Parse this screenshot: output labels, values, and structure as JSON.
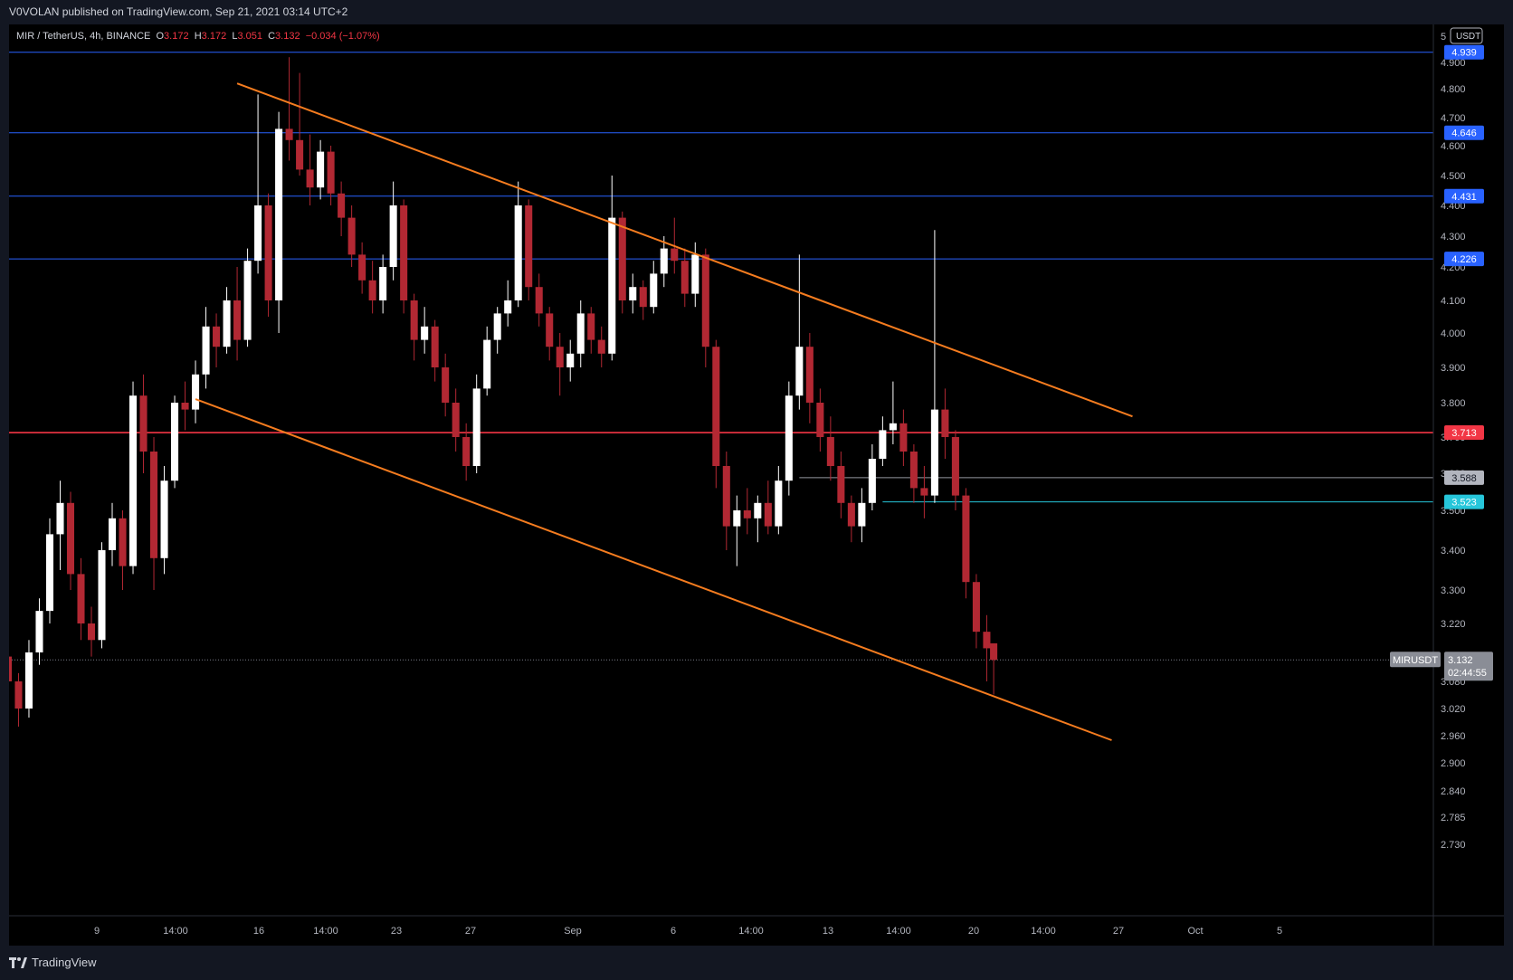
{
  "header": {
    "published": "V0VOLAN published on TradingView.com, Sep 21, 2021 03:14 UTC+2"
  },
  "legend": {
    "symbol": "MIR / TetherUS, 4h, BINANCE",
    "o_label": "O",
    "o_value": "3.172",
    "h_label": "H",
    "h_value": "3.172",
    "l_label": "L",
    "l_value": "3.051",
    "c_label": "C",
    "c_value": "3.132",
    "change": "−0.034 (−1.07%)"
  },
  "footer": {
    "brand": "TradingView"
  },
  "colors": {
    "background": "#000000",
    "up_candle": "#ffffff",
    "down_candle": "#b22833",
    "trendline": "#f57c1f",
    "level_blue": "#2962ff",
    "level_red": "#f23645",
    "level_teal": "#26c6da",
    "level_gray": "#9598a1"
  },
  "chart_data": {
    "type": "candlestick",
    "symbol": "MIRUSDT",
    "quote_currency": "USDT",
    "timeframe": "4h",
    "exchange": "BINANCE",
    "y_axis": {
      "unit": "USDT",
      "ticks": [
        "5",
        "4.900",
        "4.800",
        "4.700",
        "4.600",
        "4.500",
        "4.400",
        "4.300",
        "4.200",
        "4.100",
        "4.000",
        "3.900",
        "3.800",
        "3.700",
        "3.600",
        "3.500",
        "3.400",
        "3.300",
        "3.220",
        "3.080",
        "3.020",
        "2.960",
        "2.900",
        "2.840",
        "2.785",
        "2.730"
      ],
      "top_label": "5"
    },
    "x_axis": {
      "ticks": [
        "9",
        "14:00",
        "16",
        "14:00",
        "23",
        "27",
        "Sep",
        "6",
        "14:00",
        "13",
        "14:00",
        "20",
        "14:00",
        "27",
        "Oct",
        "5"
      ]
    },
    "time_range": [
      "2021-08-05",
      "2021-10-08"
    ],
    "horizontal_levels": [
      {
        "price": 4.939,
        "label": "4.939",
        "color": "blue"
      },
      {
        "price": 4.646,
        "label": "4.646",
        "color": "blue"
      },
      {
        "price": 4.431,
        "label": "4.431",
        "color": "blue"
      },
      {
        "price": 4.226,
        "label": "4.226",
        "color": "blue"
      },
      {
        "price": 3.713,
        "label": "3.713",
        "color": "red"
      },
      {
        "price": 3.588,
        "label": "3.588",
        "color": "gray"
      },
      {
        "price": 3.523,
        "label": "3.523",
        "color": "teal"
      }
    ],
    "current_price": {
      "symbol_label": "MIRUSDT",
      "price": "3.132",
      "countdown": "02:44:55"
    },
    "trendlines": [
      {
        "start": [
          "2021-08-16",
          4.82
        ],
        "end": [
          "2021-09-28",
          3.76
        ]
      },
      {
        "start": [
          "2021-08-14",
          3.81
        ],
        "end": [
          "2021-09-27",
          2.95
        ]
      }
    ],
    "candles": [
      {
        "t": "2021-08-05T00:00",
        "o": 3.14,
        "h": 3.16,
        "l": 3.05,
        "c": 3.08
      },
      {
        "t": "2021-08-05T12:00",
        "o": 3.08,
        "h": 3.1,
        "l": 2.98,
        "c": 3.02
      },
      {
        "t": "2021-08-06T00:00",
        "o": 3.02,
        "h": 3.18,
        "l": 3.0,
        "c": 3.15
      },
      {
        "t": "2021-08-06T12:00",
        "o": 3.15,
        "h": 3.28,
        "l": 3.12,
        "c": 3.25
      },
      {
        "t": "2021-08-07T00:00",
        "o": 3.25,
        "h": 3.48,
        "l": 3.22,
        "c": 3.44
      },
      {
        "t": "2021-08-07T12:00",
        "o": 3.44,
        "h": 3.58,
        "l": 3.35,
        "c": 3.52
      },
      {
        "t": "2021-08-08T00:00",
        "o": 3.52,
        "h": 3.55,
        "l": 3.3,
        "c": 3.34
      },
      {
        "t": "2021-08-08T12:00",
        "o": 3.34,
        "h": 3.38,
        "l": 3.18,
        "c": 3.22
      },
      {
        "t": "2021-08-09T00:00",
        "o": 3.22,
        "h": 3.26,
        "l": 3.14,
        "c": 3.18
      },
      {
        "t": "2021-08-09T12:00",
        "o": 3.18,
        "h": 3.42,
        "l": 3.16,
        "c": 3.4
      },
      {
        "t": "2021-08-10T00:00",
        "o": 3.4,
        "h": 3.52,
        "l": 3.36,
        "c": 3.48
      },
      {
        "t": "2021-08-10T12:00",
        "o": 3.48,
        "h": 3.5,
        "l": 3.3,
        "c": 3.36
      },
      {
        "t": "2021-08-11T00:00",
        "o": 3.36,
        "h": 3.86,
        "l": 3.34,
        "c": 3.82
      },
      {
        "t": "2021-08-11T12:00",
        "o": 3.82,
        "h": 3.88,
        "l": 3.6,
        "c": 3.66
      },
      {
        "t": "2021-08-12T00:00",
        "o": 3.66,
        "h": 3.7,
        "l": 3.3,
        "c": 3.38
      },
      {
        "t": "2021-08-12T12:00",
        "o": 3.38,
        "h": 3.62,
        "l": 3.34,
        "c": 3.58
      },
      {
        "t": "2021-08-13T00:00",
        "o": 3.58,
        "h": 3.82,
        "l": 3.56,
        "c": 3.8
      },
      {
        "t": "2021-08-13T12:00",
        "o": 3.8,
        "h": 3.86,
        "l": 3.72,
        "c": 3.78
      },
      {
        "t": "2021-08-14T00:00",
        "o": 3.78,
        "h": 3.92,
        "l": 3.74,
        "c": 3.88
      },
      {
        "t": "2021-08-14T12:00",
        "o": 3.88,
        "h": 4.08,
        "l": 3.84,
        "c": 4.02
      },
      {
        "t": "2021-08-15T00:00",
        "o": 4.02,
        "h": 4.06,
        "l": 3.9,
        "c": 3.96
      },
      {
        "t": "2021-08-15T12:00",
        "o": 3.96,
        "h": 4.14,
        "l": 3.94,
        "c": 4.1
      },
      {
        "t": "2021-08-16T00:00",
        "o": 4.1,
        "h": 4.2,
        "l": 3.92,
        "c": 3.98
      },
      {
        "t": "2021-08-16T12:00",
        "o": 3.98,
        "h": 4.26,
        "l": 3.96,
        "c": 4.22
      },
      {
        "t": "2021-08-17T00:00",
        "o": 4.22,
        "h": 4.78,
        "l": 4.18,
        "c": 4.4
      },
      {
        "t": "2021-08-17T12:00",
        "o": 4.4,
        "h": 4.44,
        "l": 4.05,
        "c": 4.1
      },
      {
        "t": "2021-08-18T00:00",
        "o": 4.1,
        "h": 4.72,
        "l": 4.0,
        "c": 4.66
      },
      {
        "t": "2021-08-18T12:00",
        "o": 4.66,
        "h": 4.92,
        "l": 4.55,
        "c": 4.62
      },
      {
        "t": "2021-08-19T00:00",
        "o": 4.62,
        "h": 4.86,
        "l": 4.5,
        "c": 4.52
      },
      {
        "t": "2021-08-19T12:00",
        "o": 4.52,
        "h": 4.64,
        "l": 4.4,
        "c": 4.46
      },
      {
        "t": "2021-08-20T00:00",
        "o": 4.46,
        "h": 4.62,
        "l": 4.42,
        "c": 4.58
      },
      {
        "t": "2021-08-20T12:00",
        "o": 4.58,
        "h": 4.6,
        "l": 4.4,
        "c": 4.44
      },
      {
        "t": "2021-08-21T00:00",
        "o": 4.44,
        "h": 4.48,
        "l": 4.3,
        "c": 4.36
      },
      {
        "t": "2021-08-21T12:00",
        "o": 4.36,
        "h": 4.4,
        "l": 4.2,
        "c": 4.24
      },
      {
        "t": "2021-08-22T00:00",
        "o": 4.24,
        "h": 4.28,
        "l": 4.12,
        "c": 4.16
      },
      {
        "t": "2021-08-22T12:00",
        "o": 4.16,
        "h": 4.22,
        "l": 4.06,
        "c": 4.1
      },
      {
        "t": "2021-08-23T00:00",
        "o": 4.1,
        "h": 4.24,
        "l": 4.06,
        "c": 4.2
      },
      {
        "t": "2021-08-23T12:00",
        "o": 4.2,
        "h": 4.48,
        "l": 4.16,
        "c": 4.4
      },
      {
        "t": "2021-08-24T00:00",
        "o": 4.4,
        "h": 4.42,
        "l": 4.06,
        "c": 4.1
      },
      {
        "t": "2021-08-24T12:00",
        "o": 4.1,
        "h": 4.12,
        "l": 3.92,
        "c": 3.98
      },
      {
        "t": "2021-08-25T00:00",
        "o": 3.98,
        "h": 4.08,
        "l": 3.94,
        "c": 4.02
      },
      {
        "t": "2021-08-25T12:00",
        "o": 4.02,
        "h": 4.04,
        "l": 3.86,
        "c": 3.9
      },
      {
        "t": "2021-08-26T00:00",
        "o": 3.9,
        "h": 3.94,
        "l": 3.76,
        "c": 3.8
      },
      {
        "t": "2021-08-26T12:00",
        "o": 3.8,
        "h": 3.84,
        "l": 3.66,
        "c": 3.7
      },
      {
        "t": "2021-08-27T00:00",
        "o": 3.7,
        "h": 3.74,
        "l": 3.58,
        "c": 3.62
      },
      {
        "t": "2021-08-27T12:00",
        "o": 3.62,
        "h": 3.88,
        "l": 3.6,
        "c": 3.84
      },
      {
        "t": "2021-08-28T00:00",
        "o": 3.84,
        "h": 4.02,
        "l": 3.82,
        "c": 3.98
      },
      {
        "t": "2021-08-28T12:00",
        "o": 3.98,
        "h": 4.08,
        "l": 3.94,
        "c": 4.06
      },
      {
        "t": "2021-08-29T00:00",
        "o": 4.06,
        "h": 4.16,
        "l": 4.02,
        "c": 4.1
      },
      {
        "t": "2021-08-29T12:00",
        "o": 4.1,
        "h": 4.48,
        "l": 4.08,
        "c": 4.4
      },
      {
        "t": "2021-08-30T00:00",
        "o": 4.4,
        "h": 4.42,
        "l": 4.1,
        "c": 4.14
      },
      {
        "t": "2021-08-30T12:00",
        "o": 4.14,
        "h": 4.18,
        "l": 4.02,
        "c": 4.06
      },
      {
        "t": "2021-08-31T00:00",
        "o": 4.06,
        "h": 4.08,
        "l": 3.92,
        "c": 3.96
      },
      {
        "t": "2021-08-31T12:00",
        "o": 3.96,
        "h": 4.0,
        "l": 3.82,
        "c": 3.9
      },
      {
        "t": "2021-09-01T00:00",
        "o": 3.9,
        "h": 3.98,
        "l": 3.86,
        "c": 3.94
      },
      {
        "t": "2021-09-01T12:00",
        "o": 3.94,
        "h": 4.1,
        "l": 3.9,
        "c": 4.06
      },
      {
        "t": "2021-09-02T00:00",
        "o": 4.06,
        "h": 4.08,
        "l": 3.94,
        "c": 3.98
      },
      {
        "t": "2021-09-02T12:00",
        "o": 3.98,
        "h": 4.02,
        "l": 3.9,
        "c": 3.94
      },
      {
        "t": "2021-09-03T00:00",
        "o": 3.94,
        "h": 4.5,
        "l": 3.92,
        "c": 4.36
      },
      {
        "t": "2021-09-03T12:00",
        "o": 4.36,
        "h": 4.38,
        "l": 4.06,
        "c": 4.1
      },
      {
        "t": "2021-09-04T00:00",
        "o": 4.1,
        "h": 4.18,
        "l": 4.06,
        "c": 4.14
      },
      {
        "t": "2021-09-04T12:00",
        "o": 4.14,
        "h": 4.16,
        "l": 4.04,
        "c": 4.08
      },
      {
        "t": "2021-09-05T00:00",
        "o": 4.08,
        "h": 4.22,
        "l": 4.06,
        "c": 4.18
      },
      {
        "t": "2021-09-05T12:00",
        "o": 4.18,
        "h": 4.3,
        "l": 4.14,
        "c": 4.26
      },
      {
        "t": "2021-09-06T00:00",
        "o": 4.26,
        "h": 4.36,
        "l": 4.18,
        "c": 4.22
      },
      {
        "t": "2021-09-06T12:00",
        "o": 4.22,
        "h": 4.26,
        "l": 4.08,
        "c": 4.12
      },
      {
        "t": "2021-09-07T00:00",
        "o": 4.12,
        "h": 4.28,
        "l": 4.08,
        "c": 4.24
      },
      {
        "t": "2021-09-07T12:00",
        "o": 4.24,
        "h": 4.26,
        "l": 3.9,
        "c": 3.96
      },
      {
        "t": "2021-09-08T00:00",
        "o": 3.96,
        "h": 3.98,
        "l": 3.56,
        "c": 3.62
      },
      {
        "t": "2021-09-08T12:00",
        "o": 3.62,
        "h": 3.66,
        "l": 3.4,
        "c": 3.46
      },
      {
        "t": "2021-09-09T00:00",
        "o": 3.46,
        "h": 3.54,
        "l": 3.36,
        "c": 3.5
      },
      {
        "t": "2021-09-09T12:00",
        "o": 3.5,
        "h": 3.56,
        "l": 3.44,
        "c": 3.48
      },
      {
        "t": "2021-09-10T00:00",
        "o": 3.48,
        "h": 3.54,
        "l": 3.42,
        "c": 3.52
      },
      {
        "t": "2021-09-10T12:00",
        "o": 3.52,
        "h": 3.58,
        "l": 3.44,
        "c": 3.46
      },
      {
        "t": "2021-09-11T00:00",
        "o": 3.46,
        "h": 3.62,
        "l": 3.44,
        "c": 3.58
      },
      {
        "t": "2021-09-11T12:00",
        "o": 3.58,
        "h": 3.86,
        "l": 3.54,
        "c": 3.82
      },
      {
        "t": "2021-09-12T00:00",
        "o": 3.82,
        "h": 4.24,
        "l": 3.78,
        "c": 3.96
      },
      {
        "t": "2021-09-12T12:00",
        "o": 3.96,
        "h": 4.0,
        "l": 3.74,
        "c": 3.8
      },
      {
        "t": "2021-09-13T00:00",
        "o": 3.8,
        "h": 3.84,
        "l": 3.66,
        "c": 3.7
      },
      {
        "t": "2021-09-13T12:00",
        "o": 3.7,
        "h": 3.76,
        "l": 3.58,
        "c": 3.62
      },
      {
        "t": "2021-09-14T00:00",
        "o": 3.62,
        "h": 3.66,
        "l": 3.48,
        "c": 3.52
      },
      {
        "t": "2021-09-14T12:00",
        "o": 3.52,
        "h": 3.54,
        "l": 3.42,
        "c": 3.46
      },
      {
        "t": "2021-09-15T00:00",
        "o": 3.46,
        "h": 3.56,
        "l": 3.42,
        "c": 3.52
      },
      {
        "t": "2021-09-15T12:00",
        "o": 3.52,
        "h": 3.68,
        "l": 3.5,
        "c": 3.64
      },
      {
        "t": "2021-09-16T00:00",
        "o": 3.64,
        "h": 3.76,
        "l": 3.62,
        "c": 3.72
      },
      {
        "t": "2021-09-16T12:00",
        "o": 3.72,
        "h": 3.86,
        "l": 3.68,
        "c": 3.74
      },
      {
        "t": "2021-09-17T00:00",
        "o": 3.74,
        "h": 3.78,
        "l": 3.62,
        "c": 3.66
      },
      {
        "t": "2021-09-17T12:00",
        "o": 3.66,
        "h": 3.68,
        "l": 3.52,
        "c": 3.56
      },
      {
        "t": "2021-09-18T00:00",
        "o": 3.56,
        "h": 3.62,
        "l": 3.48,
        "c": 3.54
      },
      {
        "t": "2021-09-18T12:00",
        "o": 3.54,
        "h": 4.32,
        "l": 3.52,
        "c": 3.78
      },
      {
        "t": "2021-09-19T00:00",
        "o": 3.78,
        "h": 3.84,
        "l": 3.64,
        "c": 3.7
      },
      {
        "t": "2021-09-19T12:00",
        "o": 3.7,
        "h": 3.72,
        "l": 3.5,
        "c": 3.54
      },
      {
        "t": "2021-09-20T00:00",
        "o": 3.54,
        "h": 3.56,
        "l": 3.28,
        "c": 3.32
      },
      {
        "t": "2021-09-20T12:00",
        "o": 3.32,
        "h": 3.34,
        "l": 3.16,
        "c": 3.2
      },
      {
        "t": "2021-09-21T00:00",
        "o": 3.2,
        "h": 3.24,
        "l": 3.08,
        "c": 3.16
      },
      {
        "t": "2021-09-21T08:00",
        "o": 3.172,
        "h": 3.172,
        "l": 3.051,
        "c": 3.132
      }
    ]
  }
}
